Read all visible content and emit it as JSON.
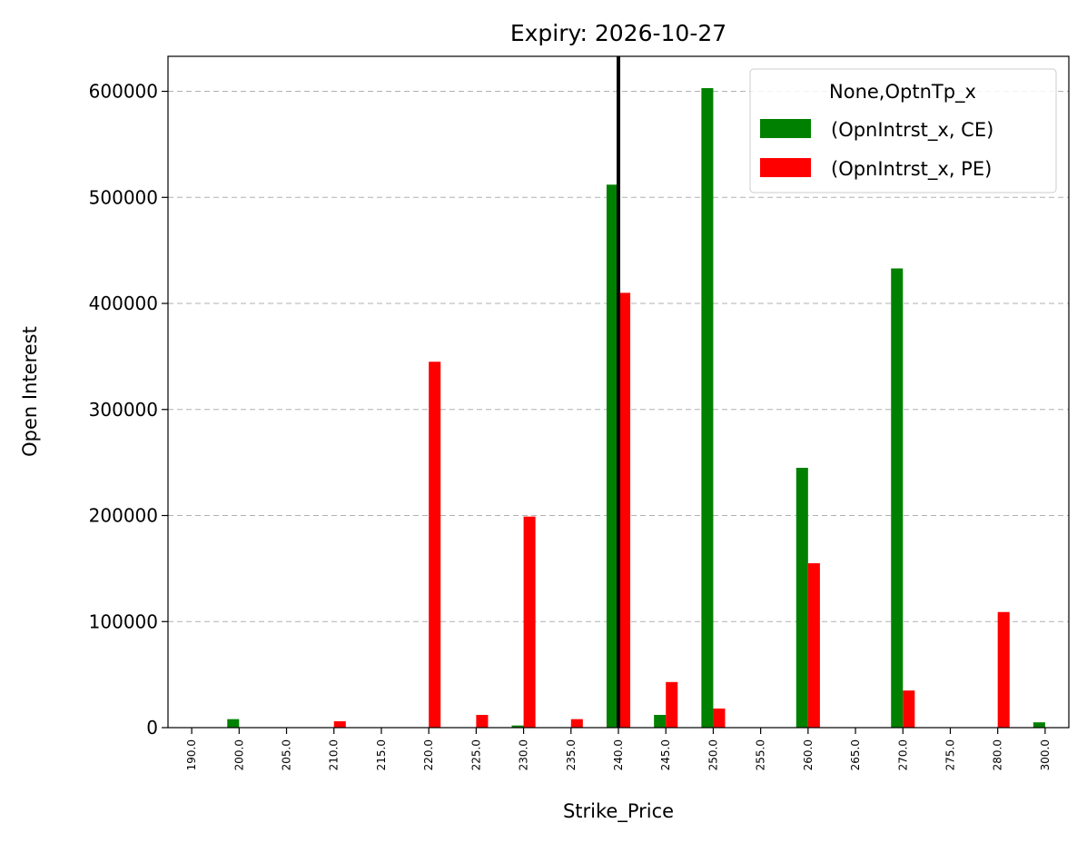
{
  "chart_data": {
    "type": "bar",
    "title": "Expiry: 2026-10-27",
    "xlabel": "Strike_Price",
    "ylabel": "Open Interest",
    "categories": [
      "190.0",
      "200.0",
      "205.0",
      "210.0",
      "215.0",
      "220.0",
      "225.0",
      "230.0",
      "235.0",
      "240.0",
      "245.0",
      "250.0",
      "255.0",
      "260.0",
      "265.0",
      "270.0",
      "275.0",
      "280.0",
      "300.0"
    ],
    "series": [
      {
        "name": "(OpnIntrst_x, CE)",
        "color": "#008000",
        "values": [
          0,
          8000,
          0,
          0,
          0,
          0,
          0,
          2000,
          0,
          512000,
          12000,
          603000,
          0,
          245000,
          0,
          433000,
          0,
          0,
          5000
        ]
      },
      {
        "name": "(OpnIntrst_x, PE)",
        "color": "#ff0000",
        "values": [
          0,
          0,
          0,
          6000,
          0,
          345000,
          12000,
          199000,
          8000,
          410000,
          43000,
          18000,
          0,
          155000,
          0,
          35000,
          0,
          109000,
          0
        ]
      }
    ],
    "ylim": [
      0,
      633000
    ],
    "yticks": [
      0,
      100000,
      200000,
      300000,
      400000,
      500000,
      600000
    ],
    "grid": "y-dashed",
    "legend": {
      "title": "None,OptnTp_x",
      "placement": "top-right"
    },
    "reference_line": {
      "x_category": "240.0",
      "color": "#000000"
    }
  }
}
